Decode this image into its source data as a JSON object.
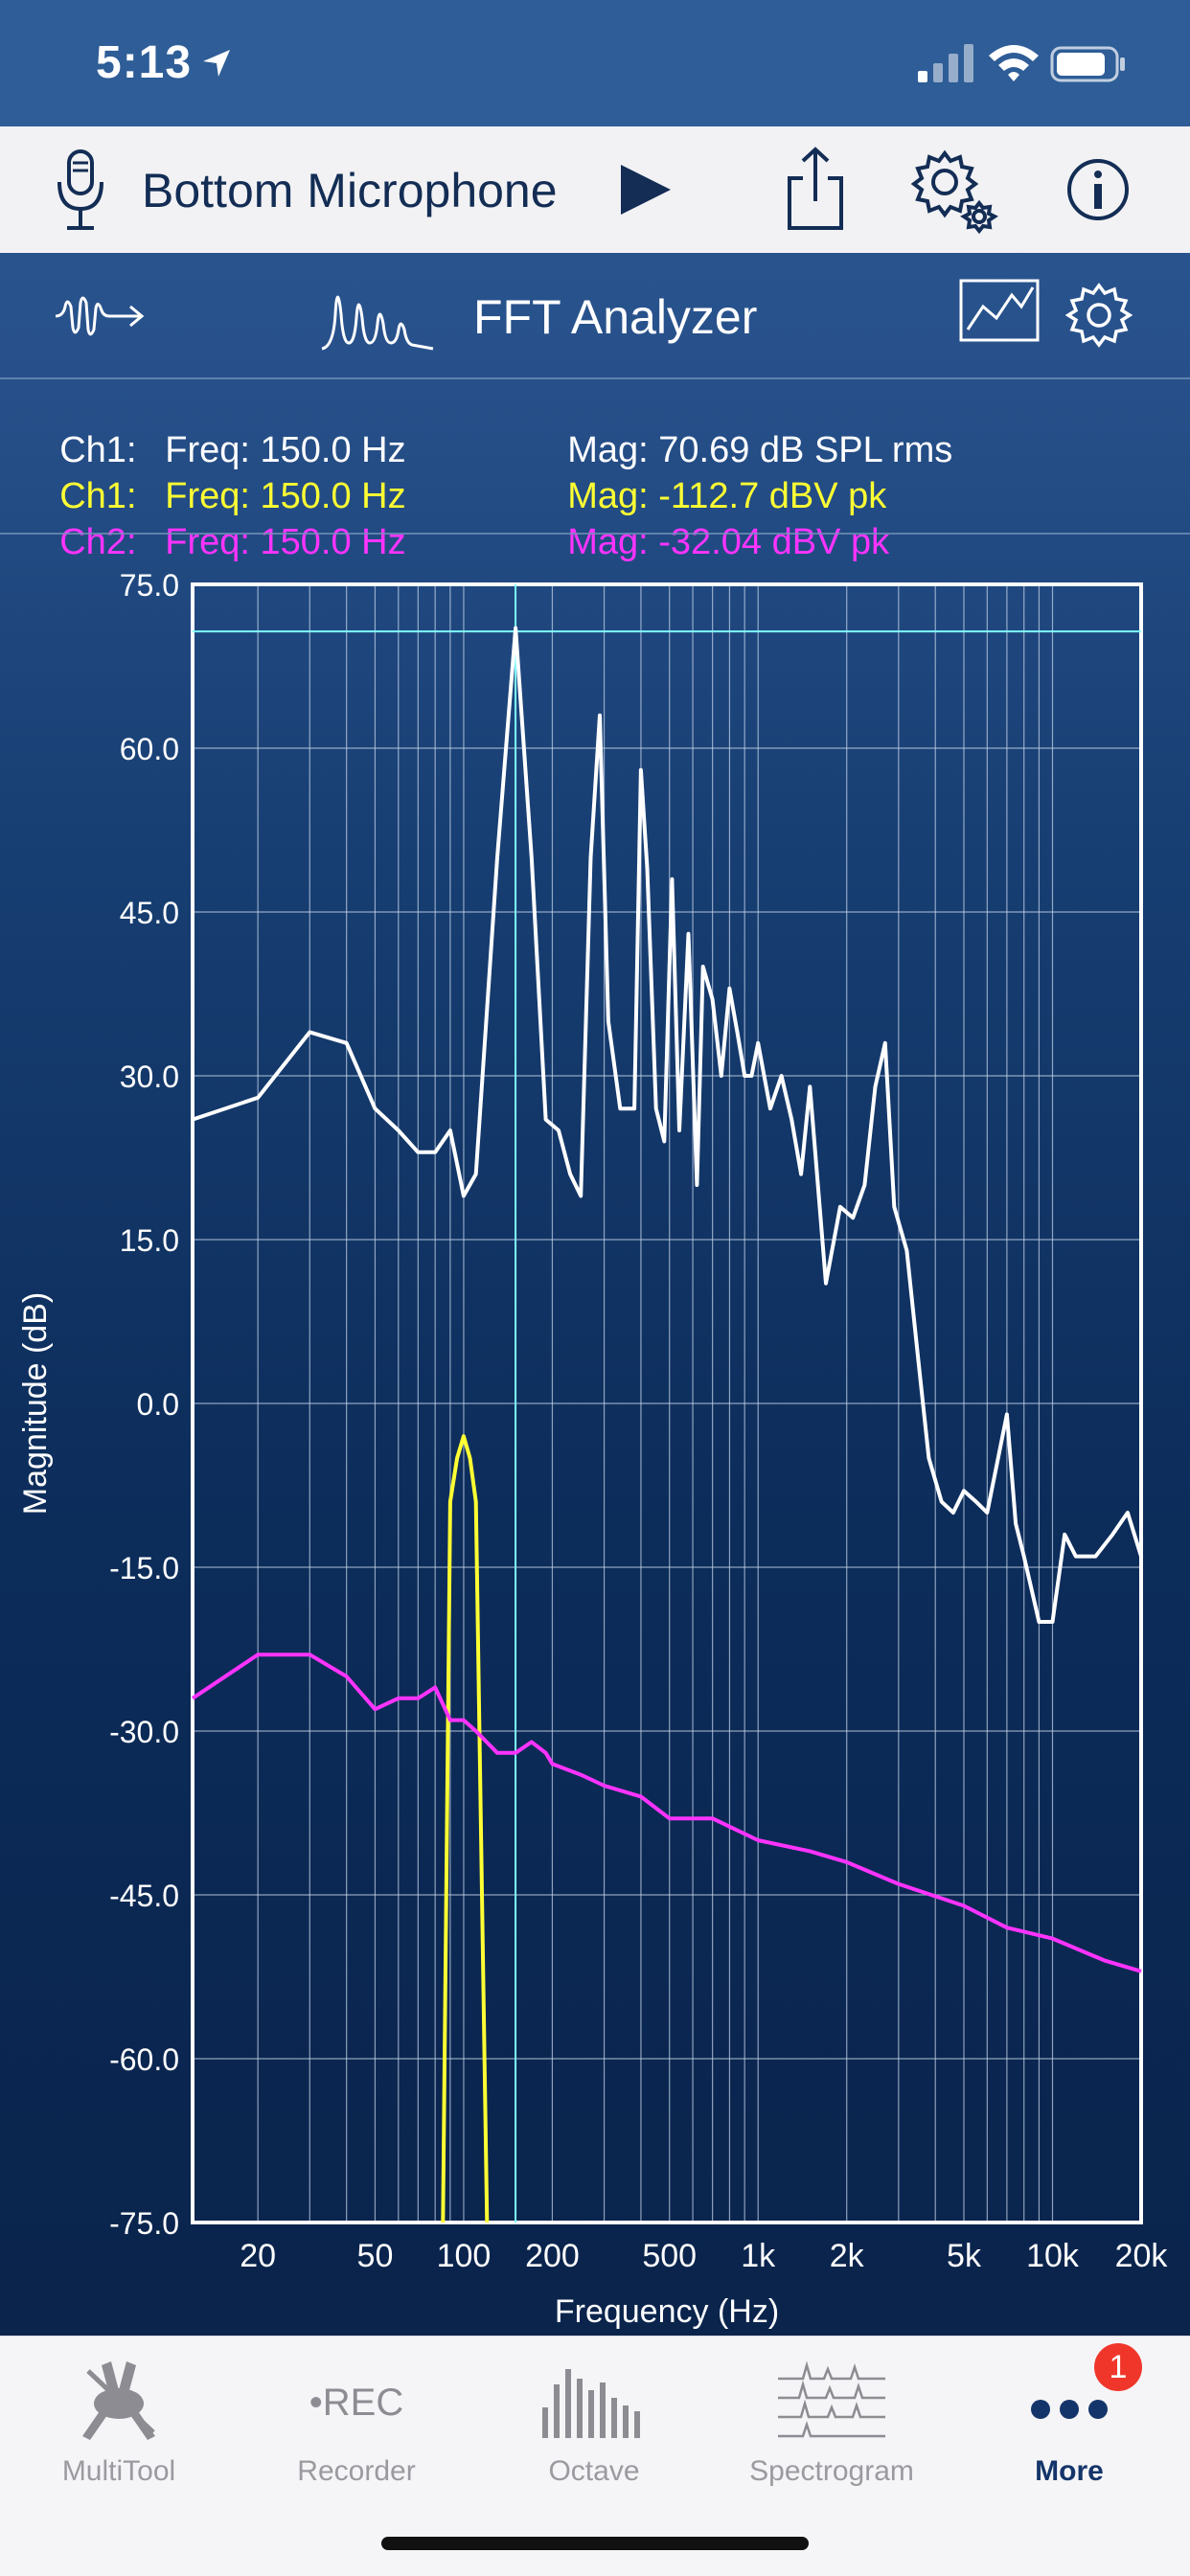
{
  "status": {
    "time": "5:13",
    "icons": [
      "location-arrow-icon",
      "cellular-signal-icon",
      "wifi-icon",
      "battery-icon"
    ]
  },
  "device_bar": {
    "source": "Bottom Microphone",
    "icons": [
      "microphone-icon",
      "play-icon",
      "share-icon",
      "advanced-settings-icon",
      "info-icon"
    ]
  },
  "title_bar": {
    "title": "FFT Analyzer",
    "icons": [
      "waveform-icon",
      "fft-icon",
      "chart-view-icon",
      "gear-icon"
    ]
  },
  "readouts": [
    {
      "ch": "Ch1:",
      "freq": "Freq: 150.0 Hz",
      "mag": "Mag: 70.69 dB SPL rms",
      "color": "#ffffff"
    },
    {
      "ch": "Ch1:",
      "freq": "Freq: 150.0 Hz",
      "mag": "Mag: -112.7 dBV pk",
      "color": "#ffff33"
    },
    {
      "ch": "Ch2:",
      "freq": "Freq: 150.0 Hz",
      "mag": "Mag: -32.04 dBV pk",
      "color": "#ff33ff"
    }
  ],
  "chart_data": {
    "type": "line",
    "xlabel": "Frequency (Hz)",
    "ylabel": "Magnitude (dB)",
    "x_scale": "log",
    "xlim": [
      12,
      20000
    ],
    "ylim": [
      -75,
      75
    ],
    "grid": true,
    "x_ticks": [
      {
        "v": 20,
        "label": "20"
      },
      {
        "v": 50,
        "label": "50"
      },
      {
        "v": 100,
        "label": "100"
      },
      {
        "v": 200,
        "label": "200"
      },
      {
        "v": 500,
        "label": "500"
      },
      {
        "v": 1000,
        "label": "1k"
      },
      {
        "v": 2000,
        "label": "2k"
      },
      {
        "v": 5000,
        "label": "5k"
      },
      {
        "v": 10000,
        "label": "10k"
      },
      {
        "v": 20000,
        "label": "20k"
      }
    ],
    "y_ticks": [
      "75.0",
      "60.0",
      "45.0",
      "30.0",
      "15.0",
      "0.0",
      "-15.0",
      "-30.0",
      "-45.0",
      "-60.0",
      "-75.0"
    ],
    "cursor": {
      "x": 150,
      "y": 70.69,
      "color": "#7fffff"
    },
    "series": [
      {
        "color": "#ffffff",
        "x": [
          12,
          20,
          30,
          40,
          50,
          60,
          70,
          80,
          90,
          100,
          110,
          130,
          150,
          170,
          190,
          210,
          230,
          250,
          270,
          290,
          310,
          340,
          380,
          400,
          420,
          450,
          480,
          510,
          540,
          580,
          620,
          650,
          700,
          750,
          800,
          850,
          900,
          950,
          1000,
          1100,
          1200,
          1300,
          1400,
          1500,
          1700,
          1900,
          2100,
          2300,
          2500,
          2700,
          2900,
          3200,
          3500,
          3800,
          4200,
          4600,
          5000,
          5500,
          6000,
          7000,
          7500,
          8000,
          9000,
          10000,
          11000,
          12000,
          14000,
          16000,
          18000,
          20000
        ],
        "y": [
          26,
          28,
          34,
          33,
          27,
          25,
          23,
          23,
          25,
          19,
          21,
          50,
          71,
          50,
          26,
          25,
          21,
          19,
          50,
          63,
          35,
          27,
          27,
          58,
          49,
          27,
          24,
          48,
          25,
          43,
          20,
          40,
          37,
          30,
          38,
          34,
          30,
          30,
          33,
          27,
          30,
          26,
          21,
          29,
          11,
          18,
          17,
          20,
          29,
          33,
          18,
          14,
          4,
          -5,
          -9,
          -10,
          -8,
          -9,
          -10,
          -1,
          -11,
          -14,
          -20,
          -20,
          -12,
          -14,
          -14,
          -12,
          -10,
          -14
        ]
      },
      {
        "color": "#ffff33",
        "x": [
          85,
          90,
          95,
          100,
          105,
          110,
          120
        ],
        "y": [
          -75,
          -9,
          -5,
          -3,
          -5,
          -9,
          -75
        ]
      },
      {
        "color": "#ff33ff",
        "x": [
          12,
          20,
          30,
          40,
          50,
          60,
          70,
          80,
          90,
          100,
          110,
          130,
          150,
          170,
          190,
          200,
          250,
          300,
          400,
          500,
          700,
          1000,
          1500,
          2000,
          3000,
          5000,
          7000,
          10000,
          15000,
          20000
        ],
        "y": [
          -27,
          -23,
          -23,
          -25,
          -28,
          -27,
          -27,
          -26,
          -29,
          -29,
          -30,
          -32,
          -32,
          -31,
          -32,
          -33,
          -34,
          -35,
          -36,
          -38,
          -38,
          -40,
          -41,
          -42,
          -44,
          -46,
          -48,
          -49,
          -51,
          -52
        ]
      }
    ]
  },
  "tabs": [
    {
      "label": "MultiTool",
      "icon": "multitool-icon",
      "active": false
    },
    {
      "label": "Recorder",
      "icon": "rec-icon",
      "icon_text": "•REC",
      "active": false
    },
    {
      "label": "Octave",
      "icon": "octave-bars-icon",
      "active": false
    },
    {
      "label": "Spectrogram",
      "icon": "spectrogram-icon",
      "active": false
    },
    {
      "label": "More",
      "icon": "more-dots-icon",
      "active": true,
      "badge": "1"
    }
  ]
}
